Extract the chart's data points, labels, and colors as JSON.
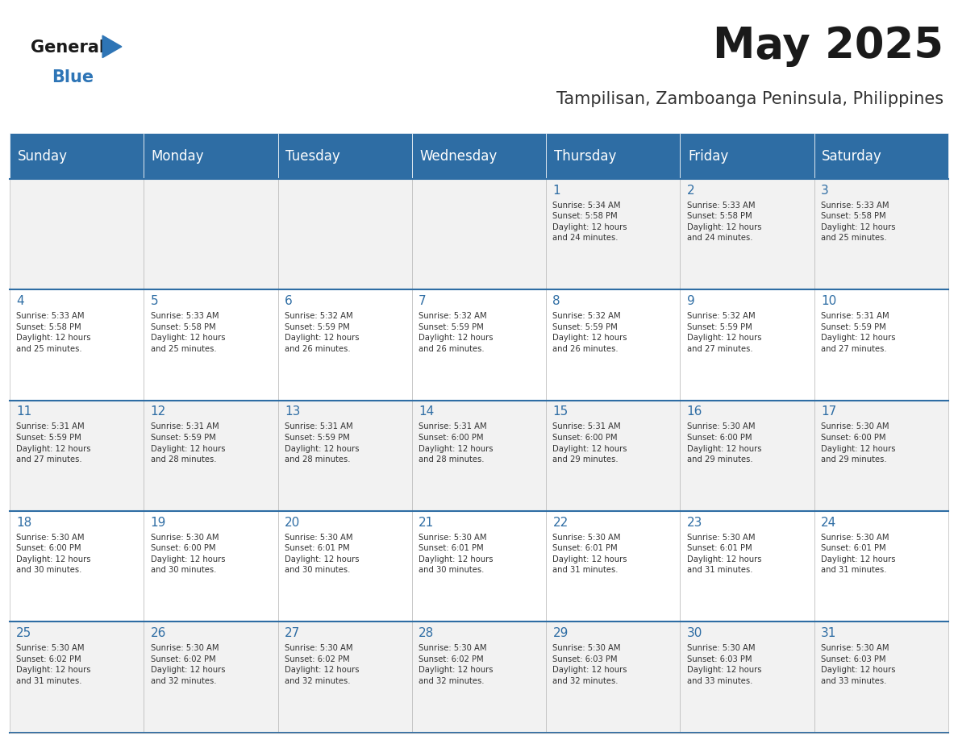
{
  "title": "May 2025",
  "subtitle": "Tampilisan, Zamboanga Peninsula, Philippines",
  "days_of_week": [
    "Sunday",
    "Monday",
    "Tuesday",
    "Wednesday",
    "Thursday",
    "Friday",
    "Saturday"
  ],
  "header_bg": "#2E6DA4",
  "header_text": "#FFFFFF",
  "cell_bg_light": "#F2F2F2",
  "cell_bg_white": "#FFFFFF",
  "cell_border": "#CCCCCC",
  "day_number_color": "#2E6DA4",
  "cell_text_color": "#333333",
  "title_color": "#1a1a1a",
  "subtitle_color": "#333333",
  "logo_general_color": "#1a1a1a",
  "logo_blue_color": "#2E75B6",
  "logo_triangle_color": "#2E75B6",
  "weeks": [
    [
      {
        "day": null,
        "info": null
      },
      {
        "day": null,
        "info": null
      },
      {
        "day": null,
        "info": null
      },
      {
        "day": null,
        "info": null
      },
      {
        "day": 1,
        "info": "Sunrise: 5:34 AM\nSunset: 5:58 PM\nDaylight: 12 hours\nand 24 minutes."
      },
      {
        "day": 2,
        "info": "Sunrise: 5:33 AM\nSunset: 5:58 PM\nDaylight: 12 hours\nand 24 minutes."
      },
      {
        "day": 3,
        "info": "Sunrise: 5:33 AM\nSunset: 5:58 PM\nDaylight: 12 hours\nand 25 minutes."
      }
    ],
    [
      {
        "day": 4,
        "info": "Sunrise: 5:33 AM\nSunset: 5:58 PM\nDaylight: 12 hours\nand 25 minutes."
      },
      {
        "day": 5,
        "info": "Sunrise: 5:33 AM\nSunset: 5:58 PM\nDaylight: 12 hours\nand 25 minutes."
      },
      {
        "day": 6,
        "info": "Sunrise: 5:32 AM\nSunset: 5:59 PM\nDaylight: 12 hours\nand 26 minutes."
      },
      {
        "day": 7,
        "info": "Sunrise: 5:32 AM\nSunset: 5:59 PM\nDaylight: 12 hours\nand 26 minutes."
      },
      {
        "day": 8,
        "info": "Sunrise: 5:32 AM\nSunset: 5:59 PM\nDaylight: 12 hours\nand 26 minutes."
      },
      {
        "day": 9,
        "info": "Sunrise: 5:32 AM\nSunset: 5:59 PM\nDaylight: 12 hours\nand 27 minutes."
      },
      {
        "day": 10,
        "info": "Sunrise: 5:31 AM\nSunset: 5:59 PM\nDaylight: 12 hours\nand 27 minutes."
      }
    ],
    [
      {
        "day": 11,
        "info": "Sunrise: 5:31 AM\nSunset: 5:59 PM\nDaylight: 12 hours\nand 27 minutes."
      },
      {
        "day": 12,
        "info": "Sunrise: 5:31 AM\nSunset: 5:59 PM\nDaylight: 12 hours\nand 28 minutes."
      },
      {
        "day": 13,
        "info": "Sunrise: 5:31 AM\nSunset: 5:59 PM\nDaylight: 12 hours\nand 28 minutes."
      },
      {
        "day": 14,
        "info": "Sunrise: 5:31 AM\nSunset: 6:00 PM\nDaylight: 12 hours\nand 28 minutes."
      },
      {
        "day": 15,
        "info": "Sunrise: 5:31 AM\nSunset: 6:00 PM\nDaylight: 12 hours\nand 29 minutes."
      },
      {
        "day": 16,
        "info": "Sunrise: 5:30 AM\nSunset: 6:00 PM\nDaylight: 12 hours\nand 29 minutes."
      },
      {
        "day": 17,
        "info": "Sunrise: 5:30 AM\nSunset: 6:00 PM\nDaylight: 12 hours\nand 29 minutes."
      }
    ],
    [
      {
        "day": 18,
        "info": "Sunrise: 5:30 AM\nSunset: 6:00 PM\nDaylight: 12 hours\nand 30 minutes."
      },
      {
        "day": 19,
        "info": "Sunrise: 5:30 AM\nSunset: 6:00 PM\nDaylight: 12 hours\nand 30 minutes."
      },
      {
        "day": 20,
        "info": "Sunrise: 5:30 AM\nSunset: 6:01 PM\nDaylight: 12 hours\nand 30 minutes."
      },
      {
        "day": 21,
        "info": "Sunrise: 5:30 AM\nSunset: 6:01 PM\nDaylight: 12 hours\nand 30 minutes."
      },
      {
        "day": 22,
        "info": "Sunrise: 5:30 AM\nSunset: 6:01 PM\nDaylight: 12 hours\nand 31 minutes."
      },
      {
        "day": 23,
        "info": "Sunrise: 5:30 AM\nSunset: 6:01 PM\nDaylight: 12 hours\nand 31 minutes."
      },
      {
        "day": 24,
        "info": "Sunrise: 5:30 AM\nSunset: 6:01 PM\nDaylight: 12 hours\nand 31 minutes."
      }
    ],
    [
      {
        "day": 25,
        "info": "Sunrise: 5:30 AM\nSunset: 6:02 PM\nDaylight: 12 hours\nand 31 minutes."
      },
      {
        "day": 26,
        "info": "Sunrise: 5:30 AM\nSunset: 6:02 PM\nDaylight: 12 hours\nand 32 minutes."
      },
      {
        "day": 27,
        "info": "Sunrise: 5:30 AM\nSunset: 6:02 PM\nDaylight: 12 hours\nand 32 minutes."
      },
      {
        "day": 28,
        "info": "Sunrise: 5:30 AM\nSunset: 6:02 PM\nDaylight: 12 hours\nand 32 minutes."
      },
      {
        "day": 29,
        "info": "Sunrise: 5:30 AM\nSunset: 6:03 PM\nDaylight: 12 hours\nand 32 minutes."
      },
      {
        "day": 30,
        "info": "Sunrise: 5:30 AM\nSunset: 6:03 PM\nDaylight: 12 hours\nand 33 minutes."
      },
      {
        "day": 31,
        "info": "Sunrise: 5:30 AM\nSunset: 6:03 PM\nDaylight: 12 hours\nand 33 minutes."
      }
    ]
  ]
}
